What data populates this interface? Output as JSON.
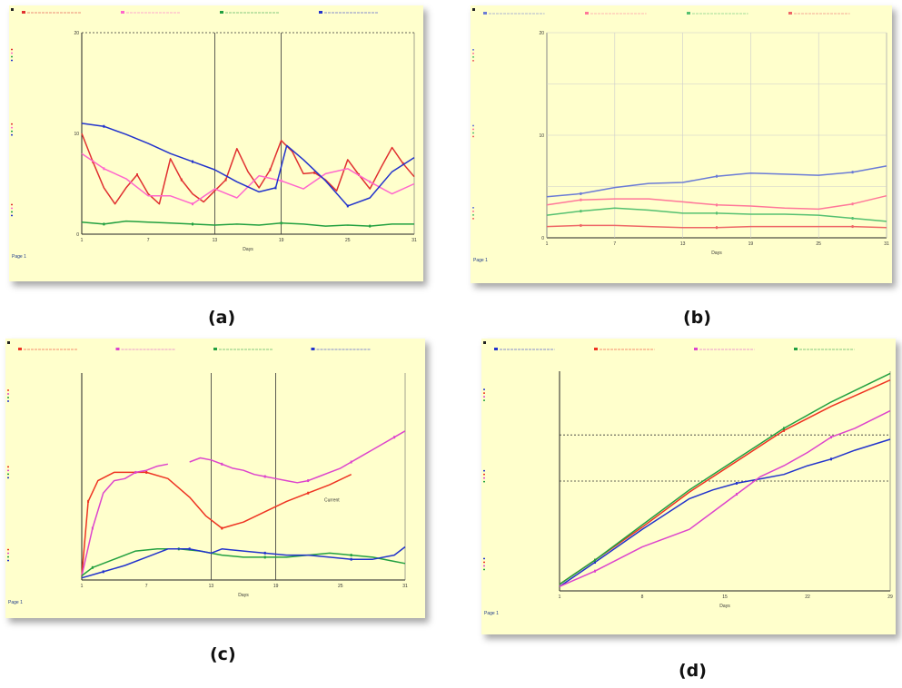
{
  "captions": {
    "a": "(a)",
    "b": "(b)",
    "c": "(c)",
    "d": "(d)"
  },
  "chart_data": [
    {
      "id": "a",
      "type": "line",
      "xlabel": "Days",
      "page_label": "Page 1",
      "x_ticks": [
        "1",
        "7",
        "13",
        "19",
        "25",
        "31"
      ],
      "y_ticks": [
        "0",
        "10",
        "20"
      ],
      "ylim": [
        0,
        20
      ],
      "xlim": [
        1,
        31
      ],
      "grid": "vertical-lines",
      "reference_line": 20,
      "legend_position": "top",
      "series": [
        {
          "color": "#e03030",
          "x": [
            1,
            2,
            3,
            4,
            5,
            6,
            7,
            8,
            9,
            10,
            11,
            12,
            13,
            14,
            15,
            16,
            17,
            18,
            19,
            20,
            21,
            22,
            23,
            24,
            25,
            26,
            27,
            28,
            29,
            30,
            31
          ],
          "y": [
            10,
            7.2,
            4.6,
            3,
            4.6,
            5.9,
            4,
            3,
            7.5,
            5.4,
            4,
            3.2,
            4.3,
            5.4,
            8.5,
            6.2,
            4.6,
            6.4,
            9.3,
            8.2,
            6,
            6.1,
            5.4,
            4.3,
            7.4,
            5.9,
            4.5,
            6.6,
            8.6,
            7,
            5.7
          ]
        },
        {
          "color": "#ff66cc",
          "x": [
            1,
            3,
            5,
            7,
            9,
            11,
            13,
            15,
            17,
            19,
            21,
            23,
            25,
            27,
            29,
            31
          ],
          "y": [
            8,
            6.5,
            5.5,
            3.8,
            3.8,
            3,
            4.5,
            3.6,
            5.8,
            5.3,
            4.5,
            6,
            6.5,
            5.2,
            4,
            5
          ]
        },
        {
          "color": "#22a040",
          "x": [
            1,
            3,
            5,
            7,
            9,
            11,
            13,
            15,
            17,
            19,
            21,
            23,
            25,
            27,
            29,
            31
          ],
          "y": [
            1.2,
            1,
            1.3,
            1.2,
            1.1,
            1,
            0.9,
            1,
            0.9,
            1.1,
            1,
            0.8,
            0.9,
            0.8,
            1,
            1
          ]
        },
        {
          "color": "#2233cc",
          "x": [
            1,
            3,
            5,
            7,
            9,
            11,
            13,
            15,
            17,
            18.5,
            19.5,
            21,
            23,
            25,
            27,
            29,
            31
          ],
          "y": [
            11,
            10.7,
            9.9,
            9,
            8,
            7.2,
            6.4,
            5.2,
            4.2,
            4.6,
            8.8,
            7.4,
            5.3,
            2.8,
            3.6,
            6.2,
            7.6
          ]
        }
      ]
    },
    {
      "id": "b",
      "type": "line",
      "xlabel": "Days",
      "page_label": "Page 1",
      "x_ticks": [
        "1",
        "7",
        "13",
        "19",
        "25",
        "31"
      ],
      "y_ticks": [
        "0",
        "10",
        "20"
      ],
      "ylim": [
        0,
        20
      ],
      "xlim": [
        1,
        31
      ],
      "grid": "both",
      "legend_position": "top",
      "series": [
        {
          "color": "#6a7bd6",
          "x": [
            1,
            4,
            7,
            10,
            13,
            16,
            19,
            22,
            25,
            28,
            31
          ],
          "y": [
            4,
            4.3,
            4.9,
            5.3,
            5.4,
            6,
            6.3,
            6.2,
            6.1,
            6.4,
            7
          ]
        },
        {
          "color": "#ff7799",
          "x": [
            1,
            4,
            7,
            10,
            13,
            16,
            19,
            22,
            25,
            28,
            31
          ],
          "y": [
            3.2,
            3.7,
            3.8,
            3.8,
            3.5,
            3.2,
            3.1,
            2.9,
            2.8,
            3.3,
            4.1
          ]
        },
        {
          "color": "#55c070",
          "x": [
            1,
            4,
            7,
            10,
            13,
            16,
            19,
            22,
            25,
            28,
            31
          ],
          "y": [
            2.2,
            2.6,
            2.9,
            2.7,
            2.4,
            2.4,
            2.3,
            2.3,
            2.2,
            1.9,
            1.6
          ]
        },
        {
          "color": "#ee6666",
          "x": [
            1,
            4,
            7,
            10,
            13,
            16,
            19,
            22,
            25,
            28,
            31
          ],
          "y": [
            1.1,
            1.2,
            1.2,
            1.1,
            1,
            1,
            1.1,
            1.1,
            1.1,
            1.1,
            1
          ]
        }
      ]
    },
    {
      "id": "c",
      "type": "line",
      "xlabel": "Days",
      "page_label": "Page 1",
      "annotation": "Current",
      "x_ticks": [
        "1",
        "7",
        "13",
        "19",
        "25",
        "31"
      ],
      "ylim": [
        0,
        100
      ],
      "xlim": [
        1,
        31
      ],
      "grid": "vertical-lines",
      "legend_position": "top",
      "series": [
        {
          "color": "#ee3322",
          "x": [
            1,
            1.6,
            2.5,
            4,
            5,
            7,
            9,
            11,
            12.5,
            14,
            16,
            18,
            20,
            22,
            24,
            26
          ],
          "y": [
            2,
            38,
            48,
            52,
            52,
            52,
            49,
            40,
            31,
            25,
            28,
            33,
            38,
            42,
            46,
            51
          ]
        },
        {
          "color": "#dd44cc",
          "x": [
            1,
            2,
            3,
            4,
            5,
            6,
            7,
            8,
            9,
            10,
            11,
            12,
            13,
            14,
            15,
            16,
            17,
            18,
            19,
            20,
            21,
            22,
            23,
            24,
            25,
            26,
            27,
            28,
            29,
            30,
            31
          ],
          "y": [
            2,
            25,
            42,
            48,
            49,
            52,
            53,
            55,
            56,
            null,
            57,
            59,
            58,
            56,
            54,
            53,
            51,
            50,
            49,
            48,
            47,
            48,
            50,
            52,
            54,
            57,
            60,
            63,
            66,
            69,
            72
          ]
        },
        {
          "color": "#22a040",
          "x": [
            1,
            2,
            4,
            6,
            8,
            10,
            12,
            14,
            16,
            18,
            20,
            22,
            24,
            26,
            28,
            30,
            31
          ],
          "y": [
            2,
            6,
            10,
            14,
            15,
            15,
            14,
            12,
            11,
            11,
            11,
            12,
            13,
            12,
            11,
            9,
            8
          ]
        },
        {
          "color": "#2233cc",
          "x": [
            1,
            3,
            5,
            7,
            9,
            11,
            13,
            14,
            16,
            18,
            20,
            22,
            24,
            26,
            28,
            30,
            31
          ],
          "y": [
            1,
            4,
            7,
            11,
            15,
            15,
            13,
            15,
            14,
            13,
            12,
            12,
            11,
            10,
            10,
            12,
            16
          ]
        }
      ]
    },
    {
      "id": "d",
      "type": "line",
      "xlabel": "Days",
      "page_label": "Page 1",
      "x_ticks": [
        "1",
        "8",
        "15",
        "22",
        "29"
      ],
      "ylim": [
        0,
        100
      ],
      "xlim": [
        1,
        29
      ],
      "grid": "horizontal-reference-lines",
      "reference_lines": [
        50,
        71
      ],
      "legend_position": "top",
      "series": [
        {
          "color": "#2233cc",
          "x": [
            1,
            4,
            8,
            12,
            14,
            16,
            18,
            20,
            22,
            24,
            26,
            29
          ],
          "y": [
            2,
            13,
            28,
            42,
            46,
            49,
            51,
            53,
            57,
            60,
            64,
            69
          ]
        },
        {
          "color": "#ee3322",
          "x": [
            1,
            4,
            8,
            12,
            16,
            20,
            24,
            29
          ],
          "y": [
            3,
            14,
            29,
            45,
            59,
            73,
            84,
            96
          ]
        },
        {
          "color": "#dd44cc",
          "x": [
            1,
            4,
            8,
            12,
            14,
            16,
            18,
            20,
            22,
            24,
            26,
            29
          ],
          "y": [
            2,
            9,
            20,
            28,
            36,
            44,
            52,
            57,
            63,
            70,
            74,
            82
          ]
        },
        {
          "color": "#22a040",
          "x": [
            1,
            4,
            8,
            12,
            16,
            20,
            24,
            29
          ],
          "y": [
            3,
            14,
            30,
            46,
            60,
            74,
            86,
            99
          ]
        }
      ]
    }
  ]
}
